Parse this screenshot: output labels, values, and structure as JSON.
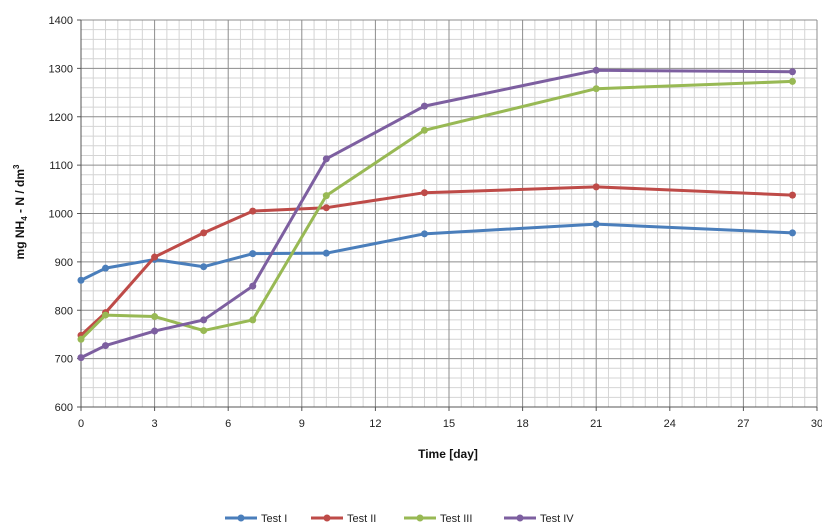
{
  "chart_data": {
    "type": "line",
    "title": "",
    "xlabel": "Time [day]",
    "ylabel_parts": {
      "prefix": "mg NH",
      "sub": "4",
      "middle": " - N / dm",
      "sup": "3"
    },
    "xlim": [
      0,
      30
    ],
    "ylim": [
      600,
      1400
    ],
    "xticks": [
      0,
      3,
      6,
      9,
      12,
      15,
      18,
      21,
      24,
      27,
      30
    ],
    "yticks": [
      600,
      700,
      800,
      900,
      1000,
      1100,
      1200,
      1300,
      1400
    ],
    "x_minor_step": 0.5,
    "y_minor_step": 20,
    "grid": true,
    "legend_position": "bottom",
    "series": [
      {
        "name": "Test I",
        "color": "#4a7ebb",
        "points": [
          [
            0,
            862
          ],
          [
            1,
            887
          ],
          [
            3,
            905
          ],
          [
            5,
            890
          ],
          [
            7,
            917
          ],
          [
            10,
            918
          ],
          [
            14,
            958
          ],
          [
            21,
            978
          ],
          [
            29,
            960
          ]
        ]
      },
      {
        "name": "Test II",
        "color": "#be4b48",
        "points": [
          [
            0,
            748
          ],
          [
            1,
            795
          ],
          [
            3,
            910
          ],
          [
            5,
            960
          ],
          [
            7,
            1005
          ],
          [
            10,
            1012
          ],
          [
            14,
            1043
          ],
          [
            21,
            1055
          ],
          [
            29,
            1038
          ]
        ]
      },
      {
        "name": "Test III",
        "color": "#98b954",
        "points": [
          [
            0,
            740
          ],
          [
            1,
            790
          ],
          [
            3,
            787
          ],
          [
            5,
            758
          ],
          [
            7,
            780
          ],
          [
            10,
            1037
          ],
          [
            14,
            1172
          ],
          [
            21,
            1258
          ],
          [
            29,
            1273
          ]
        ]
      },
      {
        "name": "Test IV",
        "color": "#7d5fa0",
        "points": [
          [
            0,
            702
          ],
          [
            1,
            727
          ],
          [
            3,
            757
          ],
          [
            5,
            780
          ],
          [
            7,
            850
          ],
          [
            10,
            1113
          ],
          [
            14,
            1222
          ],
          [
            21,
            1296
          ],
          [
            29,
            1293
          ]
        ]
      }
    ]
  }
}
